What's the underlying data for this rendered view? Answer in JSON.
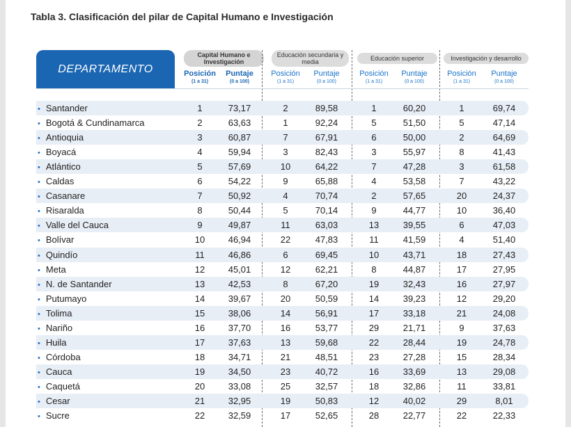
{
  "title": "Tabla 3. Clasificación del pilar de Capital Humano e Investigación",
  "header": {
    "department": "DEPARTAMENTO",
    "groups": [
      "Capital Humano e Investigación",
      "Educación secundaria y media",
      "Educación superior",
      "Investigación y desarrollo"
    ],
    "position_label": "Posición",
    "position_range": "(1 a 31)",
    "score_label": "Puntaje",
    "score_range": "(0 a 100)"
  },
  "rows": [
    {
      "name": "Santander",
      "v": [
        "1",
        "73,17",
        "2",
        "89,58",
        "1",
        "60,20",
        "1",
        "69,74"
      ]
    },
    {
      "name": "Bogotá & Cundinamarca",
      "v": [
        "2",
        "63,63",
        "1",
        "92,24",
        "5",
        "51,50",
        "5",
        "47,14"
      ]
    },
    {
      "name": "Antioquia",
      "v": [
        "3",
        "60,87",
        "7",
        "67,91",
        "6",
        "50,00",
        "2",
        "64,69"
      ]
    },
    {
      "name": "Boyacá",
      "v": [
        "4",
        "59,94",
        "3",
        "82,43",
        "3",
        "55,97",
        "8",
        "41,43"
      ]
    },
    {
      "name": "Atlántico",
      "v": [
        "5",
        "57,69",
        "10",
        "64,22",
        "7",
        "47,28",
        "3",
        "61,58"
      ]
    },
    {
      "name": "Caldas",
      "v": [
        "6",
        "54,22",
        "9",
        "65,88",
        "4",
        "53,58",
        "7",
        "43,22"
      ]
    },
    {
      "name": "Casanare",
      "v": [
        "7",
        "50,92",
        "4",
        "70,74",
        "2",
        "57,65",
        "20",
        "24,37"
      ]
    },
    {
      "name": "Risaralda",
      "v": [
        "8",
        "50,44",
        "5",
        "70,14",
        "9",
        "44,77",
        "10",
        "36,40"
      ]
    },
    {
      "name": "Valle del Cauca",
      "v": [
        "9",
        "49,87",
        "11",
        "63,03",
        "13",
        "39,55",
        "6",
        "47,03"
      ]
    },
    {
      "name": "Bolívar",
      "v": [
        "10",
        "46,94",
        "22",
        "47,83",
        "11",
        "41,59",
        "4",
        "51,40"
      ]
    },
    {
      "name": "Quindío",
      "v": [
        "11",
        "46,86",
        "6",
        "69,45",
        "10",
        "43,71",
        "18",
        "27,43"
      ]
    },
    {
      "name": "Meta",
      "v": [
        "12",
        "45,01",
        "12",
        "62,21",
        "8",
        "44,87",
        "17",
        "27,95"
      ]
    },
    {
      "name": "N. de Santander",
      "v": [
        "13",
        "42,53",
        "8",
        "67,20",
        "19",
        "32,43",
        "16",
        "27,97"
      ]
    },
    {
      "name": "Putumayo",
      "v": [
        "14",
        "39,67",
        "20",
        "50,59",
        "14",
        "39,23",
        "12",
        "29,20"
      ]
    },
    {
      "name": "Tolima",
      "v": [
        "15",
        "38,06",
        "14",
        "56,91",
        "17",
        "33,18",
        "21",
        "24,08"
      ]
    },
    {
      "name": "Nariño",
      "v": [
        "16",
        "37,70",
        "16",
        "53,77",
        "29",
        "21,71",
        "9",
        "37,63"
      ]
    },
    {
      "name": "Huila",
      "v": [
        "17",
        "37,63",
        "13",
        "59,68",
        "22",
        "28,44",
        "19",
        "24,78"
      ]
    },
    {
      "name": "Córdoba",
      "v": [
        "18",
        "34,71",
        "21",
        "48,51",
        "23",
        "27,28",
        "15",
        "28,34"
      ]
    },
    {
      "name": "Cauca",
      "v": [
        "19",
        "34,50",
        "23",
        "40,72",
        "16",
        "33,69",
        "13",
        "29,08"
      ]
    },
    {
      "name": "Caquetá",
      "v": [
        "20",
        "33,08",
        "25",
        "32,57",
        "18",
        "32,86",
        "11",
        "33,81"
      ]
    },
    {
      "name": "Cesar",
      "v": [
        "21",
        "32,95",
        "19",
        "50,83",
        "12",
        "40,02",
        "29",
        "8,01"
      ]
    },
    {
      "name": "Sucre",
      "v": [
        "22",
        "32,59",
        "17",
        "52,65",
        "28",
        "22,77",
        "22",
        "22,33"
      ]
    }
  ]
}
